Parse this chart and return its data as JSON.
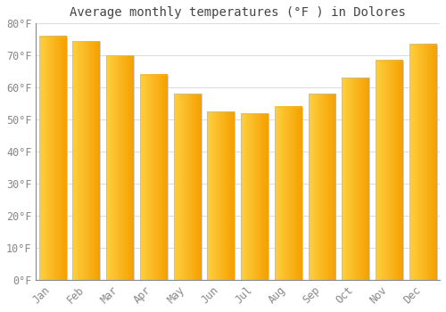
{
  "title": "Average monthly temperatures (°F ) in Dolores",
  "months": [
    "Jan",
    "Feb",
    "Mar",
    "Apr",
    "May",
    "Jun",
    "Jul",
    "Aug",
    "Sep",
    "Oct",
    "Nov",
    "Dec"
  ],
  "values": [
    76,
    74.5,
    70,
    64,
    58,
    52.5,
    52,
    54,
    58,
    63,
    68.5,
    73.5
  ],
  "bar_color_left": "#FFD040",
  "bar_color_right": "#F5A000",
  "bar_edge_color": "#CCCCCC",
  "background_color": "#FFFFFF",
  "grid_color": "#DDDDDD",
  "ylim": [
    0,
    80
  ],
  "yticks": [
    0,
    10,
    20,
    30,
    40,
    50,
    60,
    70,
    80
  ],
  "ytick_labels": [
    "0°F",
    "10°F",
    "20°F",
    "30°F",
    "40°F",
    "50°F",
    "60°F",
    "70°F",
    "80°F"
  ],
  "title_fontsize": 10,
  "tick_fontsize": 8.5,
  "title_color": "#444444",
  "tick_color": "#888888",
  "title_font": "monospace",
  "tick_font": "monospace",
  "bar_width": 0.82
}
